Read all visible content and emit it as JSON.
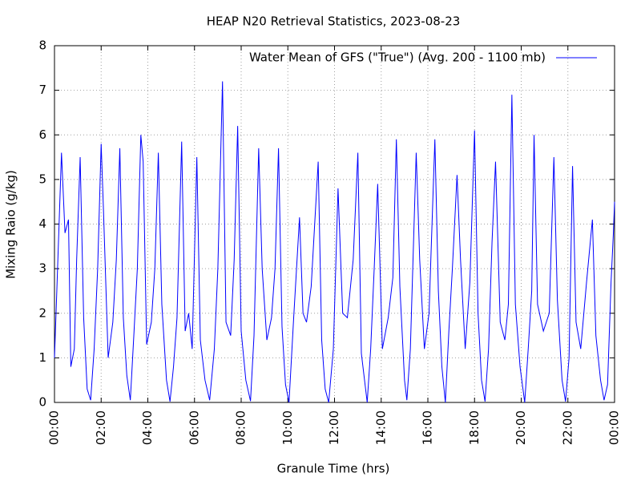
{
  "chart_data": {
    "type": "line",
    "title": "HEAP N20 Retrieval Statistics, 2023-08-23",
    "xlabel": "Granule Time (hrs)",
    "ylabel": "Mixing Raio (g/kg)",
    "x": [
      0,
      0.1,
      0.3,
      0.45,
      0.6,
      0.7,
      0.85,
      0.95,
      1.1,
      1.25,
      1.4,
      1.55,
      1.7,
      1.85,
      2.0,
      2.1,
      2.3,
      2.5,
      2.65,
      2.8,
      2.95,
      3.1,
      3.25,
      3.4,
      3.55,
      3.7,
      3.8,
      3.95,
      4.15,
      4.3,
      4.45,
      4.6,
      4.8,
      4.95,
      5.1,
      5.25,
      5.45,
      5.6,
      5.75,
      5.9,
      6.1,
      6.25,
      6.45,
      6.65,
      6.85,
      7.0,
      7.2,
      7.35,
      7.55,
      7.7,
      7.85,
      8.0,
      8.2,
      8.4,
      8.55,
      8.75,
      8.9,
      9.1,
      9.3,
      9.45,
      9.6,
      9.75,
      9.9,
      10.05,
      10.25,
      10.5,
      10.65,
      10.8,
      11.0,
      11.3,
      11.45,
      11.6,
      11.75,
      11.95,
      12.15,
      12.35,
      12.55,
      12.8,
      13.0,
      13.15,
      13.4,
      13.55,
      13.7,
      13.85,
      14.05,
      14.3,
      14.5,
      14.65,
      14.8,
      15.0,
      15.1,
      15.25,
      15.5,
      15.65,
      15.85,
      16.05,
      16.3,
      16.45,
      16.6,
      16.75,
      16.9,
      17.05,
      17.25,
      17.4,
      17.6,
      17.8,
      18.0,
      18.15,
      18.3,
      18.45,
      18.6,
      18.75,
      18.9,
      19.1,
      19.3,
      19.45,
      19.6,
      19.75,
      19.95,
      20.15,
      20.3,
      20.45,
      20.55,
      20.7,
      20.95,
      21.2,
      21.4,
      21.55,
      21.75,
      21.9,
      22.05,
      22.2,
      22.35,
      22.55,
      22.8,
      23.05,
      23.2,
      23.4,
      23.55,
      23.7,
      23.85,
      23.95,
      24.0
    ],
    "series": [
      {
        "name": "Water Mean of GFS (\"True\") (Avg. 200 - 1100 mb)",
        "color": "#0000ff",
        "values": [
          1.0,
          2.5,
          5.6,
          3.8,
          4.1,
          0.8,
          1.2,
          3.2,
          5.5,
          1.9,
          0.3,
          0.05,
          1.2,
          3.0,
          5.8,
          4.3,
          1.0,
          1.8,
          3.2,
          5.7,
          1.9,
          0.6,
          0.05,
          1.5,
          3.0,
          6.0,
          5.4,
          1.3,
          1.8,
          3.0,
          5.6,
          2.2,
          0.5,
          0.02,
          0.8,
          1.9,
          5.85,
          1.6,
          2.0,
          1.2,
          5.5,
          1.4,
          0.5,
          0.05,
          1.2,
          3.0,
          7.2,
          1.8,
          1.5,
          3.2,
          6.2,
          1.6,
          0.5,
          0.03,
          1.5,
          5.7,
          3.0,
          1.4,
          1.9,
          3.0,
          5.7,
          1.7,
          0.4,
          0.0,
          1.9,
          4.15,
          2.0,
          1.8,
          2.6,
          5.4,
          1.4,
          0.3,
          0.0,
          1.2,
          4.8,
          2.0,
          1.9,
          3.2,
          5.6,
          1.1,
          0.0,
          1.2,
          3.0,
          4.9,
          1.2,
          1.9,
          2.8,
          5.9,
          2.6,
          0.5,
          0.05,
          1.2,
          5.6,
          3.2,
          1.2,
          2.0,
          5.9,
          2.5,
          0.8,
          0.0,
          1.6,
          3.0,
          5.1,
          3.2,
          1.2,
          2.7,
          6.1,
          2.0,
          0.5,
          0.02,
          1.2,
          3.6,
          5.4,
          1.8,
          1.4,
          2.2,
          6.9,
          2.2,
          0.8,
          0.0,
          1.2,
          2.5,
          6.0,
          2.2,
          1.6,
          2.0,
          5.5,
          2.3,
          0.5,
          0.02,
          1.0,
          5.3,
          1.8,
          1.2,
          2.7,
          4.1,
          1.5,
          0.5,
          0.05,
          0.4,
          2.7,
          3.8,
          4.5
        ]
      }
    ],
    "xlim": [
      0,
      24
    ],
    "xticks": [
      {
        "value": 0,
        "label": "00:00"
      },
      {
        "value": 2,
        "label": "02:00"
      },
      {
        "value": 4,
        "label": "04:00"
      },
      {
        "value": 6,
        "label": "06:00"
      },
      {
        "value": 8,
        "label": "08:00"
      },
      {
        "value": 10,
        "label": "10:00"
      },
      {
        "value": 12,
        "label": "12:00"
      },
      {
        "value": 14,
        "label": "14:00"
      },
      {
        "value": 16,
        "label": "16:00"
      },
      {
        "value": 18,
        "label": "18:00"
      },
      {
        "value": 20,
        "label": "20:00"
      },
      {
        "value": 22,
        "label": "22:00"
      },
      {
        "value": 24,
        "label": "00:00"
      }
    ],
    "ylim": [
      0,
      8
    ],
    "yticks": [
      0,
      1,
      2,
      3,
      4,
      5,
      6,
      7,
      8
    ],
    "grid": true,
    "legend": "upper right"
  }
}
